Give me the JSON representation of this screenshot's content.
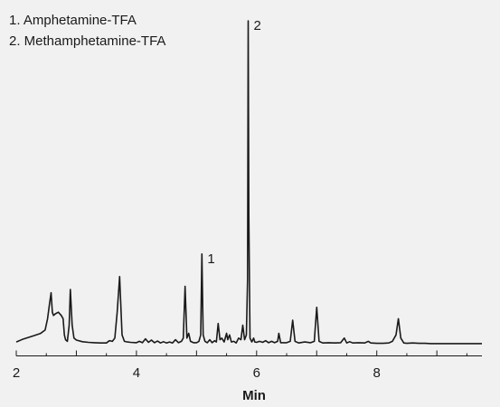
{
  "chart_data": {
    "type": "line",
    "title": "",
    "xlabel": "Min",
    "ylabel": "",
    "xlim": [
      2.0,
      9.75
    ],
    "ylim": [
      0,
      100
    ],
    "xticks": [
      2,
      4,
      6,
      8
    ],
    "grid": false,
    "legend": {
      "placement": "top-left",
      "entries": [
        "1.  Amphetamine-TFA",
        "2.  Methamphetamine-TFA"
      ]
    },
    "peak_labels": [
      {
        "label": "1",
        "x": 5.09,
        "y": 28
      },
      {
        "label": "2",
        "x": 5.86,
        "y": 100
      }
    ],
    "series": [
      {
        "color": "#1a1a1a",
        "x": [
          2.0,
          2.1,
          2.2,
          2.3,
          2.4,
          2.48,
          2.52,
          2.55,
          2.58,
          2.6,
          2.62,
          2.65,
          2.7,
          2.75,
          2.78,
          2.8,
          2.82,
          2.85,
          2.88,
          2.9,
          2.93,
          2.96,
          3.0,
          3.1,
          3.2,
          3.3,
          3.4,
          3.5,
          3.55,
          3.6,
          3.64,
          3.68,
          3.72,
          3.76,
          3.8,
          3.85,
          3.9,
          4.0,
          4.05,
          4.1,
          4.15,
          4.2,
          4.25,
          4.3,
          4.35,
          4.4,
          4.45,
          4.5,
          4.55,
          4.6,
          4.65,
          4.7,
          4.75,
          4.78,
          4.81,
          4.84,
          4.87,
          4.9,
          4.95,
          5.0,
          5.04,
          5.07,
          5.09,
          5.11,
          5.14,
          5.18,
          5.22,
          5.26,
          5.3,
          5.33,
          5.36,
          5.39,
          5.42,
          5.46,
          5.5,
          5.52,
          5.55,
          5.58,
          5.62,
          5.66,
          5.7,
          5.74,
          5.77,
          5.8,
          5.83,
          5.85,
          5.86,
          5.87,
          5.89,
          5.92,
          5.95,
          5.97,
          6.0,
          6.05,
          6.1,
          6.15,
          6.2,
          6.25,
          6.3,
          6.35,
          6.37,
          6.4,
          6.5,
          6.56,
          6.6,
          6.64,
          6.7,
          6.8,
          6.9,
          6.96,
          7.0,
          7.04,
          7.1,
          7.2,
          7.3,
          7.4,
          7.46,
          7.5,
          7.55,
          7.6,
          7.7,
          7.8,
          7.86,
          7.9,
          8.0,
          8.1,
          8.2,
          8.26,
          8.32,
          8.36,
          8.4,
          8.45,
          8.5,
          8.6,
          8.7,
          8.8,
          8.9,
          9.0,
          9.2,
          9.4,
          9.6,
          9.75
        ],
        "y": [
          0.8,
          1.6,
          2.2,
          2.8,
          3.4,
          4.5,
          8.0,
          12.0,
          16.0,
          10.0,
          9.0,
          9.5,
          10.0,
          9.0,
          8.0,
          3.0,
          1.5,
          1.0,
          6.0,
          17.0,
          6.0,
          2.0,
          1.4,
          0.9,
          0.7,
          0.6,
          0.5,
          0.5,
          1.2,
          1.0,
          2.0,
          10.0,
          21.0,
          3.0,
          1.0,
          0.8,
          0.7,
          0.6,
          1.0,
          0.6,
          1.8,
          0.7,
          1.4,
          0.6,
          1.1,
          0.5,
          0.9,
          0.5,
          0.8,
          0.5,
          1.5,
          0.6,
          1.0,
          2.0,
          18.0,
          2.0,
          3.5,
          1.0,
          0.6,
          0.6,
          1.0,
          3.0,
          28.0,
          3.0,
          1.0,
          0.6,
          1.5,
          0.6,
          1.2,
          0.8,
          6.5,
          1.5,
          2.0,
          0.8,
          3.5,
          1.5,
          3.0,
          0.8,
          1.0,
          0.5,
          2.0,
          1.5,
          6.0,
          1.5,
          3.0,
          20.0,
          100.0,
          40.0,
          2.0,
          0.8,
          2.0,
          0.8,
          0.7,
          1.0,
          0.7,
          1.2,
          0.6,
          1.0,
          0.6,
          1.0,
          3.5,
          0.6,
          0.6,
          1.0,
          7.5,
          1.0,
          0.5,
          0.8,
          0.6,
          1.0,
          11.5,
          1.0,
          0.5,
          0.6,
          0.5,
          0.6,
          2.0,
          0.5,
          0.9,
          0.5,
          0.6,
          0.5,
          1.0,
          0.5,
          0.4,
          0.4,
          0.5,
          1.0,
          3.0,
          8.0,
          2.0,
          0.5,
          0.4,
          0.5,
          0.4,
          0.4,
          0.3,
          0.3,
          0.3,
          0.3,
          0.3,
          0.3
        ]
      }
    ]
  }
}
